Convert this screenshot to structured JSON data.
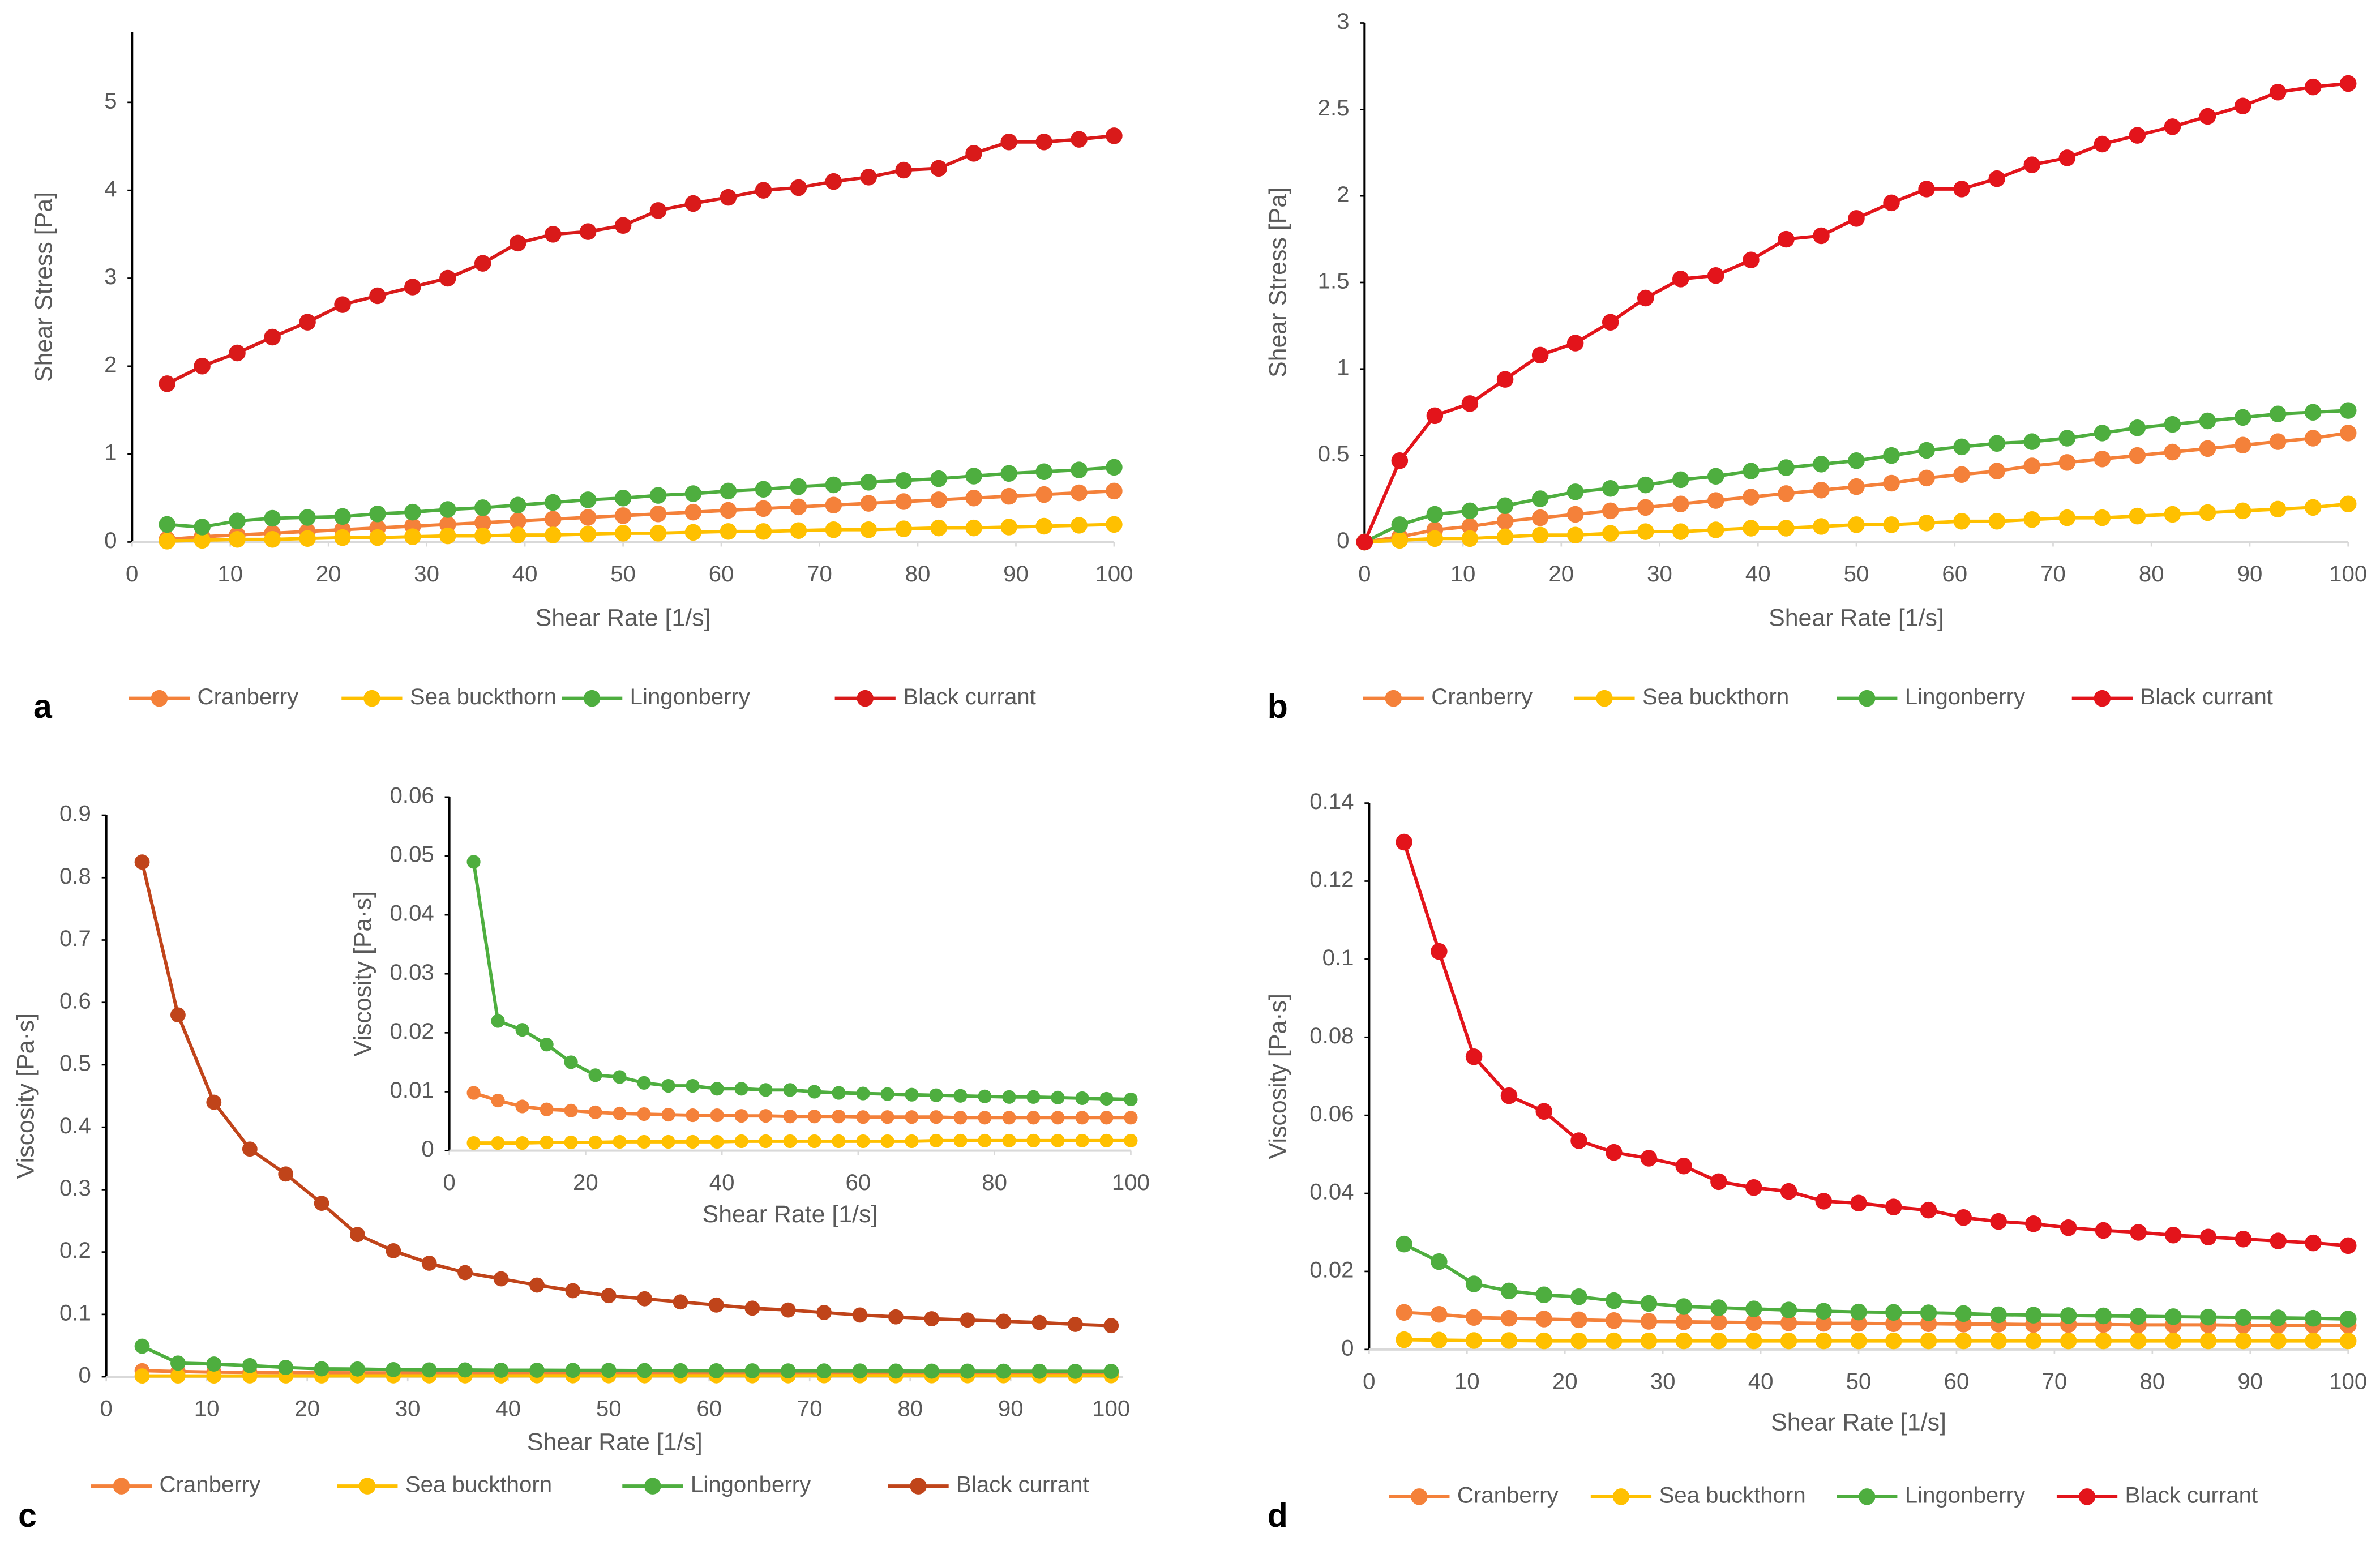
{
  "chart_data": [
    {
      "type": "line",
      "label": "a",
      "xlabel": "Shear Rate [1/s]",
      "ylabel": "Shear Stress [Pa]",
      "xlim": [
        0,
        100
      ],
      "ylim": [
        0,
        5.8
      ],
      "xticks": [
        0,
        10,
        20,
        30,
        40,
        50,
        60,
        70,
        80,
        90,
        100
      ],
      "yticks": [
        0,
        1,
        2,
        3,
        4,
        5
      ],
      "legend": true,
      "x": [
        3.57,
        7.14,
        10.71,
        14.29,
        17.86,
        21.43,
        25,
        28.57,
        32.14,
        35.71,
        39.29,
        42.86,
        46.43,
        50,
        53.57,
        57.14,
        60.71,
        64.29,
        67.86,
        71.43,
        75,
        78.57,
        82.14,
        85.71,
        89.29,
        92.86,
        96.43,
        100
      ],
      "series": [
        {
          "name": "Cranberry",
          "color": "#f4813a",
          "values": [
            0.03,
            0.06,
            0.08,
            0.1,
            0.12,
            0.14,
            0.16,
            0.18,
            0.2,
            0.22,
            0.24,
            0.26,
            0.28,
            0.3,
            0.32,
            0.34,
            0.36,
            0.38,
            0.4,
            0.42,
            0.44,
            0.46,
            0.48,
            0.5,
            0.52,
            0.54,
            0.56,
            0.58
          ]
        },
        {
          "name": "Sea buckthorn",
          "color": "#ffc000",
          "values": [
            0.01,
            0.02,
            0.03,
            0.03,
            0.04,
            0.05,
            0.05,
            0.06,
            0.07,
            0.07,
            0.08,
            0.08,
            0.09,
            0.1,
            0.1,
            0.11,
            0.12,
            0.12,
            0.13,
            0.14,
            0.14,
            0.15,
            0.16,
            0.16,
            0.17,
            0.18,
            0.19,
            0.2
          ]
        },
        {
          "name": "Lingonberry",
          "color": "#4eae3f",
          "values": [
            0.2,
            0.17,
            0.24,
            0.27,
            0.28,
            0.29,
            0.32,
            0.34,
            0.37,
            0.39,
            0.42,
            0.45,
            0.48,
            0.5,
            0.53,
            0.55,
            0.58,
            0.6,
            0.63,
            0.65,
            0.68,
            0.7,
            0.72,
            0.75,
            0.78,
            0.8,
            0.82,
            0.85
          ]
        },
        {
          "name": "Black currant",
          "color": "#d91a1a",
          "values": [
            1.8,
            2.0,
            2.15,
            2.33,
            2.5,
            2.7,
            2.8,
            2.9,
            3.0,
            3.17,
            3.4,
            3.5,
            3.53,
            3.6,
            3.77,
            3.85,
            3.92,
            4.0,
            4.03,
            4.1,
            4.15,
            4.23,
            4.25,
            4.42,
            4.55,
            4.55,
            4.58,
            4.62
          ]
        }
      ]
    },
    {
      "type": "line",
      "label": "b",
      "xlabel": "Shear Rate [1/s]",
      "ylabel": "Shear Stress [Pa]",
      "xlim": [
        0,
        100
      ],
      "ylim": [
        0,
        3
      ],
      "xticks": [
        0,
        10,
        20,
        30,
        40,
        50,
        60,
        70,
        80,
        90,
        100
      ],
      "yticks": [
        0,
        0.5,
        1,
        1.5,
        2,
        2.5,
        3
      ],
      "legend": true,
      "x": [
        0,
        3.57,
        7.14,
        10.71,
        14.29,
        17.86,
        21.43,
        25,
        28.57,
        32.14,
        35.71,
        39.29,
        42.86,
        46.43,
        50,
        53.57,
        57.14,
        60.71,
        64.29,
        67.86,
        71.43,
        75,
        78.57,
        82.14,
        85.71,
        89.29,
        92.86,
        96.43,
        100
      ],
      "series": [
        {
          "name": "Cranberry",
          "color": "#f4813a",
          "values": [
            0,
            0.03,
            0.07,
            0.09,
            0.12,
            0.14,
            0.16,
            0.18,
            0.2,
            0.22,
            0.24,
            0.26,
            0.28,
            0.3,
            0.32,
            0.34,
            0.37,
            0.39,
            0.41,
            0.44,
            0.46,
            0.48,
            0.5,
            0.52,
            0.54,
            0.56,
            0.58,
            0.6,
            0.63
          ]
        },
        {
          "name": "Sea buckthorn",
          "color": "#ffc000",
          "values": [
            0,
            0.01,
            0.02,
            0.02,
            0.03,
            0.04,
            0.04,
            0.05,
            0.06,
            0.06,
            0.07,
            0.08,
            0.08,
            0.09,
            0.1,
            0.1,
            0.11,
            0.12,
            0.12,
            0.13,
            0.14,
            0.14,
            0.15,
            0.16,
            0.17,
            0.18,
            0.19,
            0.2,
            0.22
          ]
        },
        {
          "name": "Lingonberry",
          "color": "#4eae3f",
          "values": [
            0,
            0.1,
            0.16,
            0.18,
            0.21,
            0.25,
            0.29,
            0.31,
            0.33,
            0.36,
            0.38,
            0.41,
            0.43,
            0.45,
            0.47,
            0.5,
            0.53,
            0.55,
            0.57,
            0.58,
            0.6,
            0.63,
            0.66,
            0.68,
            0.7,
            0.72,
            0.74,
            0.75,
            0.76
          ]
        },
        {
          "name": "Black currant",
          "color": "#e3141b",
          "values": [
            0,
            0.47,
            0.73,
            0.8,
            0.94,
            1.08,
            1.15,
            1.27,
            1.41,
            1.52,
            1.54,
            1.63,
            1.75,
            1.77,
            1.87,
            1.96,
            2.04,
            2.04,
            2.1,
            2.18,
            2.22,
            2.3,
            2.35,
            2.4,
            2.46,
            2.52,
            2.6,
            2.63,
            2.65
          ]
        }
      ]
    },
    {
      "type": "line",
      "label": "c",
      "xlabel": "Shear Rate [1/s]",
      "ylabel": "Viscosity [Pa·s]",
      "xlim": [
        0,
        101.2
      ],
      "ylim": [
        0,
        0.9
      ],
      "xticks": [
        0,
        10,
        20,
        30,
        40,
        50,
        60,
        70,
        80,
        90,
        100
      ],
      "yticks": [
        0,
        0.1,
        0.2,
        0.3,
        0.4,
        0.5,
        0.6,
        0.7,
        0.8,
        0.9
      ],
      "legend": true,
      "x": [
        3.57,
        7.14,
        10.71,
        14.29,
        17.86,
        21.43,
        25,
        28.57,
        32.14,
        35.71,
        39.29,
        42.86,
        46.43,
        50,
        53.57,
        57.14,
        60.71,
        64.29,
        67.86,
        71.43,
        75,
        78.57,
        82.14,
        85.71,
        89.29,
        92.86,
        96.43,
        100
      ],
      "series": [
        {
          "name": "Cranberry",
          "color": "#f4813a",
          "values": [
            0.0098,
            0.0085,
            0.0075,
            0.007,
            0.0068,
            0.0065,
            0.0063,
            0.0062,
            0.0061,
            0.006,
            0.006,
            0.0059,
            0.0059,
            0.0058,
            0.0058,
            0.0058,
            0.0057,
            0.0057,
            0.0057,
            0.0057,
            0.0056,
            0.0056,
            0.0056,
            0.0056,
            0.0056,
            0.0056,
            0.0056,
            0.0056
          ]
        },
        {
          "name": "Sea buckthorn",
          "color": "#ffc000",
          "values": [
            0.0013,
            0.0013,
            0.0013,
            0.0014,
            0.0014,
            0.0014,
            0.0015,
            0.0015,
            0.0015,
            0.0015,
            0.0015,
            0.0016,
            0.0016,
            0.0016,
            0.0016,
            0.0016,
            0.0016,
            0.0016,
            0.0016,
            0.0017,
            0.0017,
            0.0017,
            0.0017,
            0.0017,
            0.0017,
            0.0017,
            0.0017,
            0.0017
          ]
        },
        {
          "name": "Lingonberry",
          "color": "#4eae3f",
          "values": [
            0.049,
            0.022,
            0.0205,
            0.018,
            0.015,
            0.0128,
            0.0125,
            0.0115,
            0.011,
            0.011,
            0.0105,
            0.0105,
            0.0103,
            0.0103,
            0.01,
            0.0098,
            0.0097,
            0.0096,
            0.0095,
            0.0094,
            0.0093,
            0.0092,
            0.0091,
            0.0091,
            0.009,
            0.0089,
            0.0088,
            0.0087
          ]
        },
        {
          "name": "Black currant",
          "color": "#c0441a",
          "values": [
            0.825,
            0.58,
            0.44,
            0.365,
            0.325,
            0.278,
            0.228,
            0.202,
            0.182,
            0.167,
            0.157,
            0.147,
            0.138,
            0.13,
            0.125,
            0.12,
            0.115,
            0.11,
            0.107,
            0.103,
            0.099,
            0.096,
            0.093,
            0.091,
            0.089,
            0.087,
            0.084,
            0.082
          ]
        }
      ]
    },
    {
      "type": "line",
      "xlabel": "Shear Rate [1/s]",
      "ylabel": "Viscosity [Pa·s]",
      "xlim": [
        0,
        100
      ],
      "ylim": [
        0,
        0.06
      ],
      "xticks": [
        0,
        20,
        40,
        60,
        80,
        100
      ],
      "yticks": [
        0,
        0.01,
        0.02,
        0.03,
        0.04,
        0.05,
        0.06
      ],
      "x": [
        3.57,
        7.14,
        10.71,
        14.29,
        17.86,
        21.43,
        25,
        28.57,
        32.14,
        35.71,
        39.29,
        42.86,
        46.43,
        50,
        53.57,
        57.14,
        60.71,
        64.29,
        67.86,
        71.43,
        75,
        78.57,
        82.14,
        85.71,
        89.29,
        92.86,
        96.43,
        100
      ],
      "series": [
        {
          "name": "Cranberry",
          "color": "#f4813a",
          "values": [
            0.0098,
            0.0085,
            0.0075,
            0.007,
            0.0068,
            0.0065,
            0.0063,
            0.0062,
            0.0061,
            0.006,
            0.006,
            0.0059,
            0.0059,
            0.0058,
            0.0058,
            0.0058,
            0.0057,
            0.0057,
            0.0057,
            0.0057,
            0.0056,
            0.0056,
            0.0056,
            0.0056,
            0.0056,
            0.0056,
            0.0056,
            0.0056
          ]
        },
        {
          "name": "Sea buckthorn",
          "color": "#ffc000",
          "values": [
            0.0013,
            0.0013,
            0.0013,
            0.0014,
            0.0014,
            0.0014,
            0.0015,
            0.0015,
            0.0015,
            0.0015,
            0.0015,
            0.0016,
            0.0016,
            0.0016,
            0.0016,
            0.0016,
            0.0016,
            0.0016,
            0.0016,
            0.0017,
            0.0017,
            0.0017,
            0.0017,
            0.0017,
            0.0017,
            0.0017,
            0.0017,
            0.0017
          ]
        },
        {
          "name": "Lingonberry",
          "color": "#4eae3f",
          "values": [
            0.049,
            0.022,
            0.0205,
            0.018,
            0.015,
            0.0128,
            0.0125,
            0.0115,
            0.011,
            0.011,
            0.0105,
            0.0105,
            0.0103,
            0.0103,
            0.01,
            0.0098,
            0.0097,
            0.0096,
            0.0095,
            0.0094,
            0.0093,
            0.0092,
            0.0091,
            0.0091,
            0.009,
            0.0089,
            0.0088,
            0.0087
          ]
        }
      ]
    },
    {
      "type": "line",
      "label": "d",
      "xlabel": "Shear Rate [1/s]",
      "ylabel": "Viscosity [Pa·s]",
      "xlim": [
        0,
        100
      ],
      "ylim": [
        0,
        0.14
      ],
      "xticks": [
        0,
        10,
        20,
        30,
        40,
        50,
        60,
        70,
        80,
        90,
        100
      ],
      "yticks": [
        0,
        0.02,
        0.04,
        0.06,
        0.08,
        0.1,
        0.12,
        0.14
      ],
      "legend": true,
      "x": [
        3.57,
        7.14,
        10.71,
        14.29,
        17.86,
        21.43,
        25,
        28.57,
        32.14,
        35.71,
        39.29,
        42.86,
        46.43,
        50,
        53.57,
        57.14,
        60.71,
        64.29,
        67.86,
        71.43,
        75,
        78.57,
        82.14,
        85.71,
        89.29,
        92.86,
        96.43,
        100
      ],
      "series": [
        {
          "name": "Cranberry",
          "color": "#f4813a",
          "values": [
            0.0095,
            0.009,
            0.0082,
            0.008,
            0.0078,
            0.0076,
            0.0074,
            0.0072,
            0.0071,
            0.007,
            0.0069,
            0.0068,
            0.0067,
            0.0067,
            0.0066,
            0.0066,
            0.0065,
            0.0065,
            0.0064,
            0.0064,
            0.0064,
            0.0063,
            0.0063,
            0.0063,
            0.0062,
            0.0062,
            0.0062,
            0.0062
          ]
        },
        {
          "name": "Sea buckthorn",
          "color": "#ffc000",
          "values": [
            0.0025,
            0.0024,
            0.0023,
            0.0023,
            0.0022,
            0.0022,
            0.0022,
            0.0022,
            0.0022,
            0.0022,
            0.0022,
            0.0022,
            0.0022,
            0.0022,
            0.0022,
            0.0022,
            0.0022,
            0.0022,
            0.0022,
            0.0022,
            0.0022,
            0.0022,
            0.0022,
            0.0022,
            0.0022,
            0.0022,
            0.0022,
            0.0022
          ]
        },
        {
          "name": "Lingonberry",
          "color": "#4eae3f",
          "values": [
            0.027,
            0.0225,
            0.0168,
            0.015,
            0.014,
            0.0135,
            0.0125,
            0.0118,
            0.011,
            0.0107,
            0.0104,
            0.0101,
            0.0098,
            0.0096,
            0.0095,
            0.0094,
            0.0092,
            0.0089,
            0.0088,
            0.0087,
            0.0086,
            0.0085,
            0.0084,
            0.0083,
            0.0082,
            0.0081,
            0.008,
            0.0078
          ]
        },
        {
          "name": "Black currant",
          "color": "#e3141b",
          "values": [
            0.13,
            0.102,
            0.075,
            0.065,
            0.061,
            0.0535,
            0.0505,
            0.049,
            0.047,
            0.043,
            0.0415,
            0.0405,
            0.038,
            0.0375,
            0.0365,
            0.0357,
            0.0338,
            0.0328,
            0.0322,
            0.0312,
            0.0305,
            0.03,
            0.0293,
            0.0288,
            0.0283,
            0.0278,
            0.0273,
            0.0266
          ]
        }
      ]
    }
  ]
}
